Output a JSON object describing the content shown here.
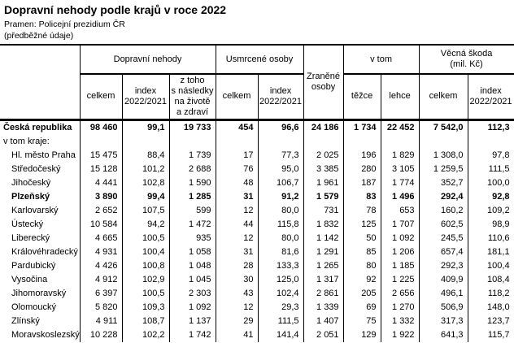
{
  "page": {
    "title": "Dopravní nehody podle krajů v roce 2022",
    "source_line": "Pramen: Policejní prezidium ČR",
    "note_line": "(předběžné údaje)"
  },
  "table": {
    "group_headers": {
      "dopravni_nehody": "Dopravní nehody",
      "usmrcene_osoby": "Usmrcené osoby",
      "zranene_osoby": "Zraněné\nosoby",
      "v_tom": "v tom",
      "vecna_skoda": "Věcná škoda\n(mil. Kč)"
    },
    "sub_headers": {
      "nehody_celkem": "celkem",
      "nehody_index": "index\n2022/2021",
      "nehody_z_toho": "z toho\ns následky\nna životě\na zdraví",
      "usmrceni_celkem": "celkem",
      "usmrceni_index": "index\n2022/2021",
      "tezce": "těžce",
      "lehce": "lehce",
      "skoda_celkem": "celkem",
      "skoda_index": "index\n2022/2021"
    },
    "rows": [
      {
        "label": "Česká republika",
        "bold": true,
        "indent": false,
        "values": [
          "98 460",
          "99,1",
          "19 733",
          "454",
          "96,6",
          "24 186",
          "1 734",
          "22 452",
          "7 542,0",
          "112,3"
        ]
      },
      {
        "label": "v tom kraje:",
        "bold": false,
        "indent": false,
        "values": [
          "",
          "",
          "",
          "",
          "",
          "",
          "",
          "",
          "",
          ""
        ]
      },
      {
        "label": "Hl. město Praha",
        "bold": false,
        "indent": true,
        "values": [
          "15 475",
          "88,4",
          "1 739",
          "17",
          "77,3",
          "2 025",
          "196",
          "1 829",
          "1 308,0",
          "97,8"
        ]
      },
      {
        "label": "Středočeský",
        "bold": false,
        "indent": true,
        "values": [
          "15 128",
          "101,2",
          "2 688",
          "76",
          "95,0",
          "3 385",
          "280",
          "3 105",
          "1 259,5",
          "111,5"
        ]
      },
      {
        "label": "Jihočeský",
        "bold": false,
        "indent": true,
        "values": [
          "4 441",
          "102,8",
          "1 590",
          "48",
          "106,7",
          "1 961",
          "187",
          "1 774",
          "352,7",
          "100,0"
        ]
      },
      {
        "label": "Plzeňský",
        "bold": true,
        "indent": true,
        "values": [
          "3 890",
          "99,4",
          "1 285",
          "31",
          "91,2",
          "1 579",
          "83",
          "1 496",
          "292,4",
          "92,8"
        ]
      },
      {
        "label": "Karlovarský",
        "bold": false,
        "indent": true,
        "values": [
          "2 652",
          "107,5",
          "599",
          "12",
          "80,0",
          "731",
          "78",
          "653",
          "160,2",
          "109,2"
        ]
      },
      {
        "label": "Ústecký",
        "bold": false,
        "indent": true,
        "values": [
          "10 584",
          "94,2",
          "1 472",
          "44",
          "115,8",
          "1 832",
          "125",
          "1 707",
          "602,5",
          "98,9"
        ]
      },
      {
        "label": "Liberecký",
        "bold": false,
        "indent": true,
        "values": [
          "4 665",
          "100,5",
          "935",
          "12",
          "80,0",
          "1 142",
          "50",
          "1 092",
          "245,5",
          "110,6"
        ]
      },
      {
        "label": "Královéhradecký",
        "bold": false,
        "indent": true,
        "values": [
          "4 931",
          "100,4",
          "1 058",
          "31",
          "81,6",
          "1 291",
          "85",
          "1 206",
          "657,4",
          "181,1"
        ]
      },
      {
        "label": "Pardubický",
        "bold": false,
        "indent": true,
        "values": [
          "4 426",
          "100,8",
          "1 048",
          "28",
          "133,3",
          "1 265",
          "80",
          "1 185",
          "292,3",
          "100,4"
        ]
      },
      {
        "label": "Vysočina",
        "bold": false,
        "indent": true,
        "values": [
          "4 912",
          "102,9",
          "1 045",
          "30",
          "125,0",
          "1 317",
          "92",
          "1 225",
          "409,9",
          "108,4"
        ]
      },
      {
        "label": "Jihomoravský",
        "bold": false,
        "indent": true,
        "values": [
          "6 397",
          "100,5",
          "2 303",
          "43",
          "102,4",
          "2 861",
          "205",
          "2 656",
          "496,1",
          "118,2"
        ]
      },
      {
        "label": "Olomoucký",
        "bold": false,
        "indent": true,
        "values": [
          "5 820",
          "109,3",
          "1 092",
          "12",
          "29,3",
          "1 339",
          "69",
          "1 270",
          "506,9",
          "148,0"
        ]
      },
      {
        "label": "Zlínský",
        "bold": false,
        "indent": true,
        "values": [
          "4 911",
          "108,7",
          "1 137",
          "29",
          "111,5",
          "1 407",
          "75",
          "1 332",
          "317,3",
          "123,7"
        ]
      },
      {
        "label": "Moravskoslezský",
        "bold": false,
        "indent": true,
        "values": [
          "10 228",
          "102,2",
          "1 742",
          "41",
          "141,4",
          "2 051",
          "129",
          "1 922",
          "641,3",
          "115,7"
        ]
      }
    ]
  }
}
